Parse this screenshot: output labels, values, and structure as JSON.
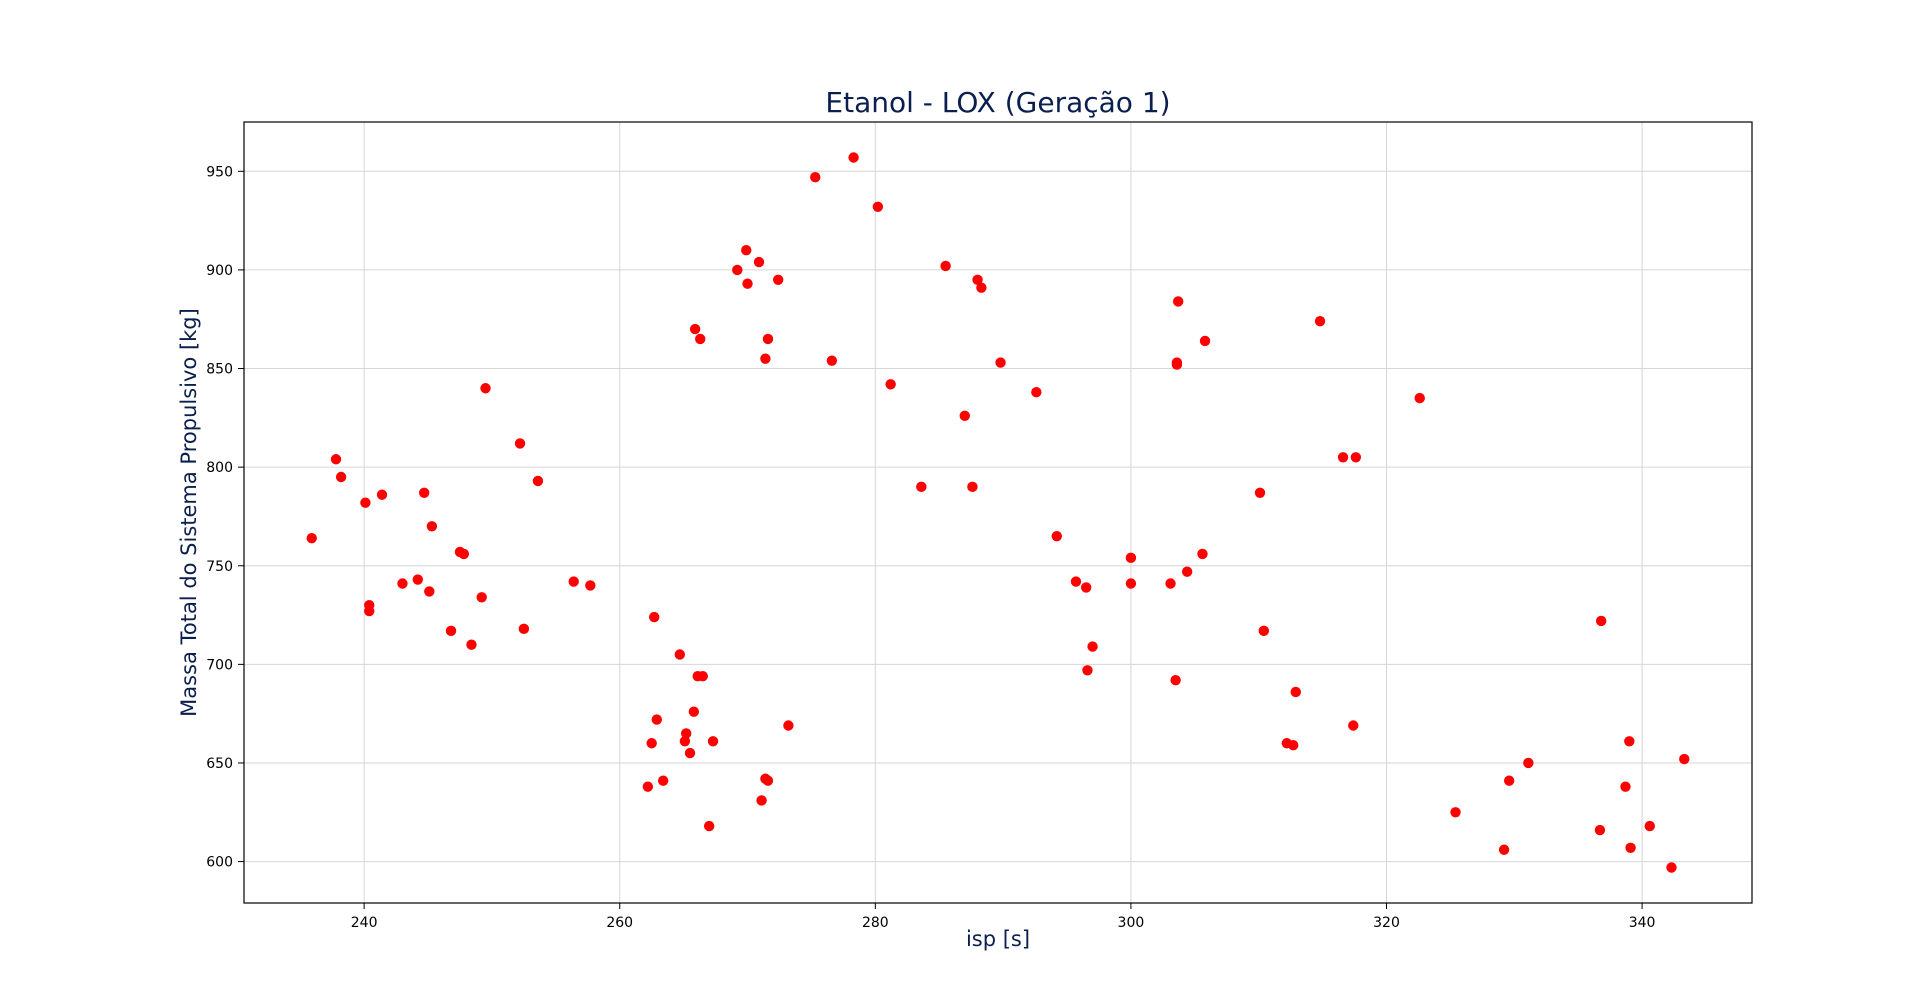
{
  "chart_data": {
    "type": "scatter",
    "title": "Etanol - LOX (Geração 1)",
    "xlabel": "isp [s]",
    "ylabel": "Massa Total do Sistema Propulsivo [kg]",
    "xlim": [
      230.6,
      348.6
    ],
    "ylim": [
      579,
      975
    ],
    "xticks": [
      240,
      260,
      280,
      300,
      320,
      340
    ],
    "yticks": [
      600,
      650,
      700,
      750,
      800,
      850,
      900,
      950
    ],
    "grid": true,
    "marker_color": "#ff0000",
    "series": [
      {
        "x": [
          235.9,
          237.8,
          238.2,
          240.1,
          240.4,
          240.4,
          241.4,
          243.0,
          244.2,
          244.7,
          245.1,
          245.3,
          246.8,
          247.5,
          247.8,
          248.4,
          249.2,
          249.5,
          252.2,
          252.5,
          253.6,
          256.4,
          257.7,
          262.2,
          262.5,
          262.7,
          262.9,
          263.4,
          264.7,
          265.1,
          265.2,
          265.5,
          265.8,
          265.9,
          266.1,
          266.3,
          266.5,
          267.0,
          267.3,
          269.2,
          269.9,
          270.0,
          270.9,
          271.1,
          271.4,
          271.4,
          271.6,
          271.6,
          272.4,
          273.2,
          275.3,
          276.6,
          278.3,
          280.2,
          281.2,
          283.6,
          285.5,
          287.0,
          287.6,
          288.0,
          288.3,
          289.8,
          292.6,
          294.2,
          295.7,
          296.5,
          296.6,
          297.0,
          300.0,
          300.0,
          303.1,
          303.5,
          303.6,
          303.6,
          303.7,
          304.4,
          305.6,
          305.8,
          310.1,
          310.4,
          312.2,
          312.7,
          312.9,
          314.8,
          316.6,
          317.4,
          317.6,
          322.6,
          325.4,
          329.2,
          329.6,
          331.1,
          336.7,
          336.8,
          338.7,
          339.0,
          339.1,
          340.6,
          342.3,
          343.3
        ],
        "y": [
          764,
          804,
          795,
          782,
          730,
          727,
          786,
          741,
          743,
          787,
          737,
          770,
          717,
          757,
          756,
          710,
          734,
          840,
          812,
          718,
          793,
          742,
          740,
          638,
          660,
          724,
          672,
          641,
          705,
          661,
          665,
          655,
          676,
          870,
          694,
          865,
          694,
          618,
          661,
          900,
          910,
          893,
          904,
          631,
          642,
          855,
          641,
          865,
          895,
          669,
          947,
          854,
          957,
          932,
          842,
          790,
          902,
          826,
          790,
          895,
          891,
          853,
          838,
          765,
          742,
          739,
          697,
          709,
          754,
          741,
          741,
          692,
          852,
          853,
          884,
          747,
          756,
          864,
          787,
          717,
          660,
          659,
          686,
          874,
          805,
          669,
          805,
          835,
          625,
          606,
          641,
          650,
          616,
          722,
          638,
          661,
          607,
          618,
          597,
          652
        ]
      }
    ]
  }
}
